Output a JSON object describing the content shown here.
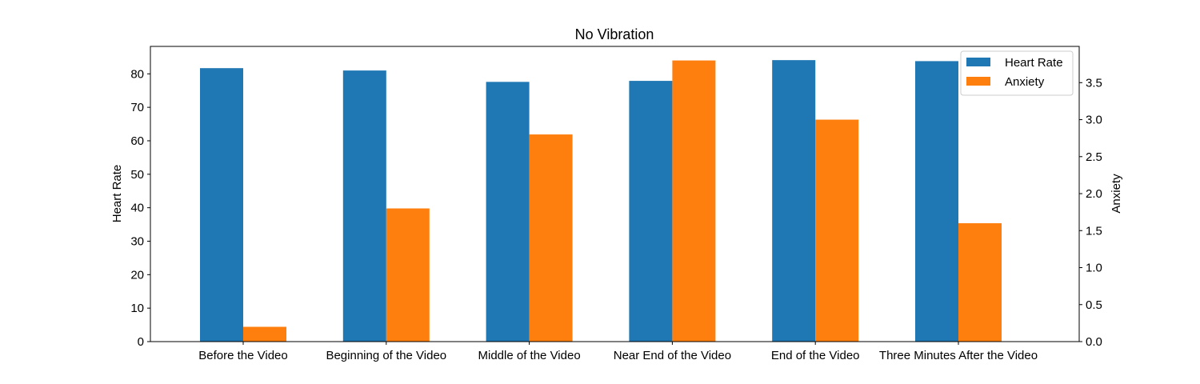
{
  "chart_data": {
    "type": "bar",
    "title": "No Vibration",
    "xlabel": "",
    "categories": [
      "Before the Video",
      "Beginning of the Video",
      "Middle of the Video",
      "Near End of the Video",
      "End of the Video",
      "Three Minutes After the Video"
    ],
    "series": [
      {
        "name": "Heart Rate",
        "axis": "left",
        "color": "#1f77b4",
        "values": [
          81.7,
          81.0,
          77.6,
          77.9,
          84.1,
          83.8
        ]
      },
      {
        "name": "Anxiety",
        "axis": "right",
        "color": "#ff7f0e",
        "values": [
          0.2,
          1.8,
          2.8,
          3.8,
          3.0,
          1.6
        ]
      }
    ],
    "y_left": {
      "label": "Heart Rate",
      "lim": [
        0,
        88.2
      ],
      "ticks": [
        0,
        10,
        20,
        30,
        40,
        50,
        60,
        70,
        80
      ],
      "tick_labels": [
        "0",
        "10",
        "20",
        "30",
        "40",
        "50",
        "60",
        "70",
        "80"
      ]
    },
    "y_right": {
      "label": "Anxiety",
      "lim": [
        0,
        3.99
      ],
      "ticks": [
        0,
        0.5,
        1.0,
        1.5,
        2.0,
        2.5,
        3.0,
        3.5
      ],
      "tick_labels": [
        "0.0",
        "0.5",
        "1.0",
        "1.5",
        "2.0",
        "2.5",
        "3.0",
        "3.5"
      ]
    },
    "legend": {
      "position": "top-right",
      "entries": [
        "Heart Rate",
        "Anxiety"
      ]
    },
    "grid": false
  }
}
